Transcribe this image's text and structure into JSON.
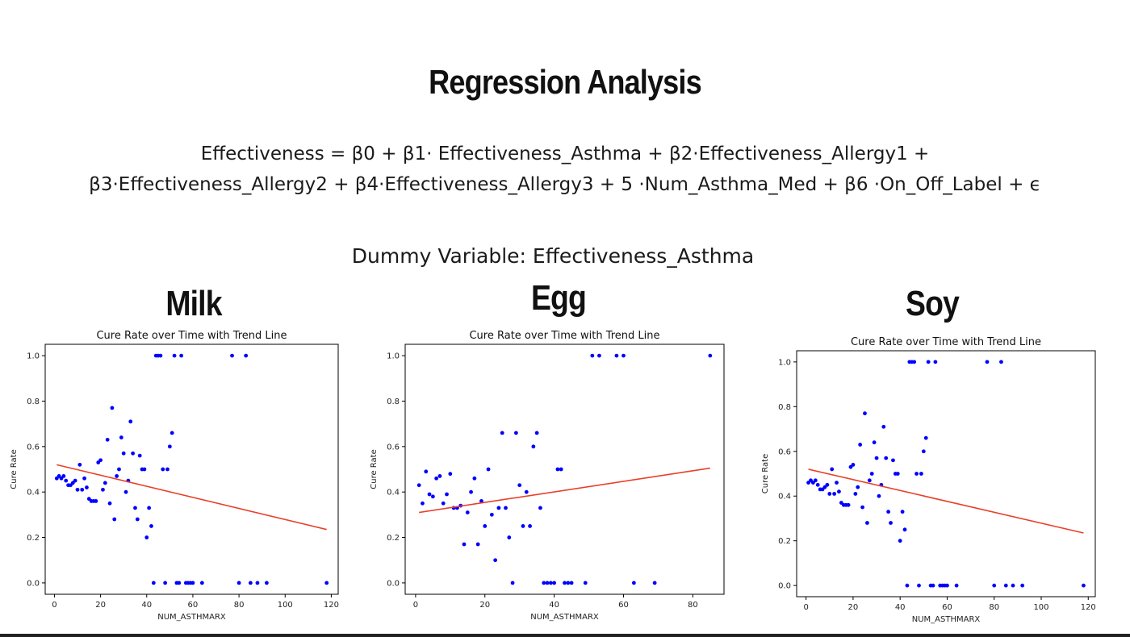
{
  "slide": {
    "title": "Regression Analysis",
    "equation_line1": "Effectiveness = β0 + β1·  Effectiveness_Asthma + β2·Effectiveness_Allergy1 +",
    "equation_line2": "β3·Effectiveness_Allergy2 + β4·Effectiveness_Allergy3 + 5  ·Num_Asthma_Med + β6  ·On_Off_Label + ϵ",
    "dummy_variable": "Dummy Variable: Effectiveness_Asthma",
    "panels": [
      {
        "label": "Milk"
      },
      {
        "label": "Egg"
      },
      {
        "label": "Soy"
      }
    ]
  },
  "colors": {
    "points": "#0000ff",
    "trend": "#e8402a",
    "axes": "#000000"
  },
  "chart_data": [
    {
      "type": "scatter",
      "title": "Cure Rate over Time with Trend Line",
      "xlabel": "NUM_ASTHMARX",
      "ylabel": "Cure Rate",
      "xlim": [
        -4,
        123
      ],
      "ylim": [
        -0.05,
        1.05
      ],
      "xticks": [
        0,
        20,
        40,
        60,
        80,
        100,
        120
      ],
      "yticks": [
        0.0,
        0.2,
        0.4,
        0.6,
        0.8,
        1.0
      ],
      "x": [
        1,
        2,
        3,
        4,
        5,
        6,
        7,
        8,
        9,
        10,
        11,
        12,
        13,
        14,
        15,
        16,
        17,
        18,
        19,
        20,
        21,
        22,
        23,
        24,
        25,
        26,
        27,
        28,
        29,
        30,
        31,
        32,
        33,
        34,
        35,
        36,
        37,
        38,
        39,
        40,
        41,
        42,
        43,
        44,
        45,
        46,
        47,
        48,
        49,
        50,
        51,
        52,
        53,
        54,
        55,
        57,
        58,
        59,
        60,
        64,
        77,
        80,
        83,
        85,
        88,
        92,
        118
      ],
      "y": [
        0.46,
        0.47,
        0.46,
        0.47,
        0.45,
        0.43,
        0.43,
        0.44,
        0.45,
        0.41,
        0.52,
        0.41,
        0.46,
        0.42,
        0.37,
        0.36,
        0.36,
        0.36,
        0.53,
        0.54,
        0.41,
        0.44,
        0.63,
        0.35,
        0.77,
        0.28,
        0.47,
        0.5,
        0.64,
        0.57,
        0.4,
        0.45,
        0.71,
        0.57,
        0.33,
        0.28,
        0.56,
        0.5,
        0.5,
        0.2,
        0.33,
        0.25,
        0.0,
        1.0,
        1.0,
        1.0,
        0.5,
        0.0,
        0.5,
        0.6,
        0.66,
        1.0,
        0.0,
        0.0,
        1.0,
        0.0,
        0.0,
        0.0,
        0.0,
        0.0,
        1.0,
        0.0,
        1.0,
        0.0,
        0.0,
        0.0,
        0.0
      ],
      "trend": {
        "x": [
          1,
          118
        ],
        "y": [
          0.52,
          0.235
        ]
      }
    },
    {
      "type": "scatter",
      "title": "Cure Rate over Time with Trend Line",
      "xlabel": "NUM_ASTHMARX",
      "ylabel": "Cure Rate",
      "xlim": [
        -3,
        89
      ],
      "ylim": [
        -0.05,
        1.05
      ],
      "xticks": [
        0,
        20,
        40,
        60,
        80
      ],
      "yticks": [
        0.0,
        0.2,
        0.4,
        0.6,
        0.8,
        1.0
      ],
      "x": [
        1,
        2,
        3,
        4,
        5,
        6,
        7,
        8,
        9,
        10,
        11,
        12,
        13,
        14,
        15,
        16,
        17,
        18,
        19,
        20,
        21,
        22,
        23,
        24,
        25,
        26,
        27,
        28,
        29,
        30,
        31,
        32,
        33,
        34,
        35,
        36,
        37,
        38,
        39,
        40,
        41,
        42,
        43,
        44,
        45,
        49,
        51,
        53,
        58,
        60,
        63,
        69,
        85
      ],
      "y": [
        0.43,
        0.35,
        0.49,
        0.39,
        0.38,
        0.46,
        0.47,
        0.35,
        0.39,
        0.48,
        0.33,
        0.33,
        0.34,
        0.17,
        0.31,
        0.4,
        0.46,
        0.17,
        0.36,
        0.25,
        0.5,
        0.3,
        0.1,
        0.33,
        0.66,
        0.33,
        0.2,
        0.0,
        0.66,
        0.43,
        0.25,
        0.4,
        0.25,
        0.6,
        0.66,
        0.33,
        0.0,
        0.0,
        0.0,
        0.0,
        0.5,
        0.5,
        0.0,
        0.0,
        0.0,
        0.0,
        1.0,
        1.0,
        1.0,
        1.0,
        0.0,
        0.0,
        1.0
      ],
      "trend": {
        "x": [
          1,
          85
        ],
        "y": [
          0.31,
          0.505
        ]
      }
    },
    {
      "type": "scatter",
      "title": "Cure Rate over Time with Trend Line",
      "xlabel": "NUM_ASTHMARX",
      "ylabel": "Cure Rate",
      "xlim": [
        -4,
        123
      ],
      "ylim": [
        -0.05,
        1.05
      ],
      "xticks": [
        0,
        20,
        40,
        60,
        80,
        100,
        120
      ],
      "yticks": [
        0.0,
        0.2,
        0.4,
        0.6,
        0.8,
        1.0
      ],
      "x": [
        1,
        2,
        3,
        4,
        5,
        6,
        7,
        8,
        9,
        10,
        11,
        12,
        13,
        14,
        15,
        16,
        17,
        18,
        19,
        20,
        21,
        22,
        23,
        24,
        25,
        26,
        27,
        28,
        29,
        30,
        31,
        32,
        33,
        34,
        35,
        36,
        37,
        38,
        39,
        40,
        41,
        42,
        43,
        44,
        45,
        46,
        47,
        48,
        49,
        50,
        51,
        52,
        53,
        54,
        55,
        57,
        58,
        59,
        60,
        64,
        77,
        80,
        83,
        85,
        88,
        92,
        118
      ],
      "y": [
        0.46,
        0.47,
        0.46,
        0.47,
        0.45,
        0.43,
        0.43,
        0.44,
        0.45,
        0.41,
        0.52,
        0.41,
        0.46,
        0.42,
        0.37,
        0.36,
        0.36,
        0.36,
        0.53,
        0.54,
        0.41,
        0.44,
        0.63,
        0.35,
        0.77,
        0.28,
        0.47,
        0.5,
        0.64,
        0.57,
        0.4,
        0.45,
        0.71,
        0.57,
        0.33,
        0.28,
        0.56,
        0.5,
        0.5,
        0.2,
        0.33,
        0.25,
        0.0,
        1.0,
        1.0,
        1.0,
        0.5,
        0.0,
        0.5,
        0.6,
        0.66,
        1.0,
        0.0,
        0.0,
        1.0,
        0.0,
        0.0,
        0.0,
        0.0,
        0.0,
        1.0,
        0.0,
        1.0,
        0.0,
        0.0,
        0.0,
        0.0
      ],
      "trend": {
        "x": [
          1,
          118
        ],
        "y": [
          0.52,
          0.235
        ]
      }
    }
  ]
}
